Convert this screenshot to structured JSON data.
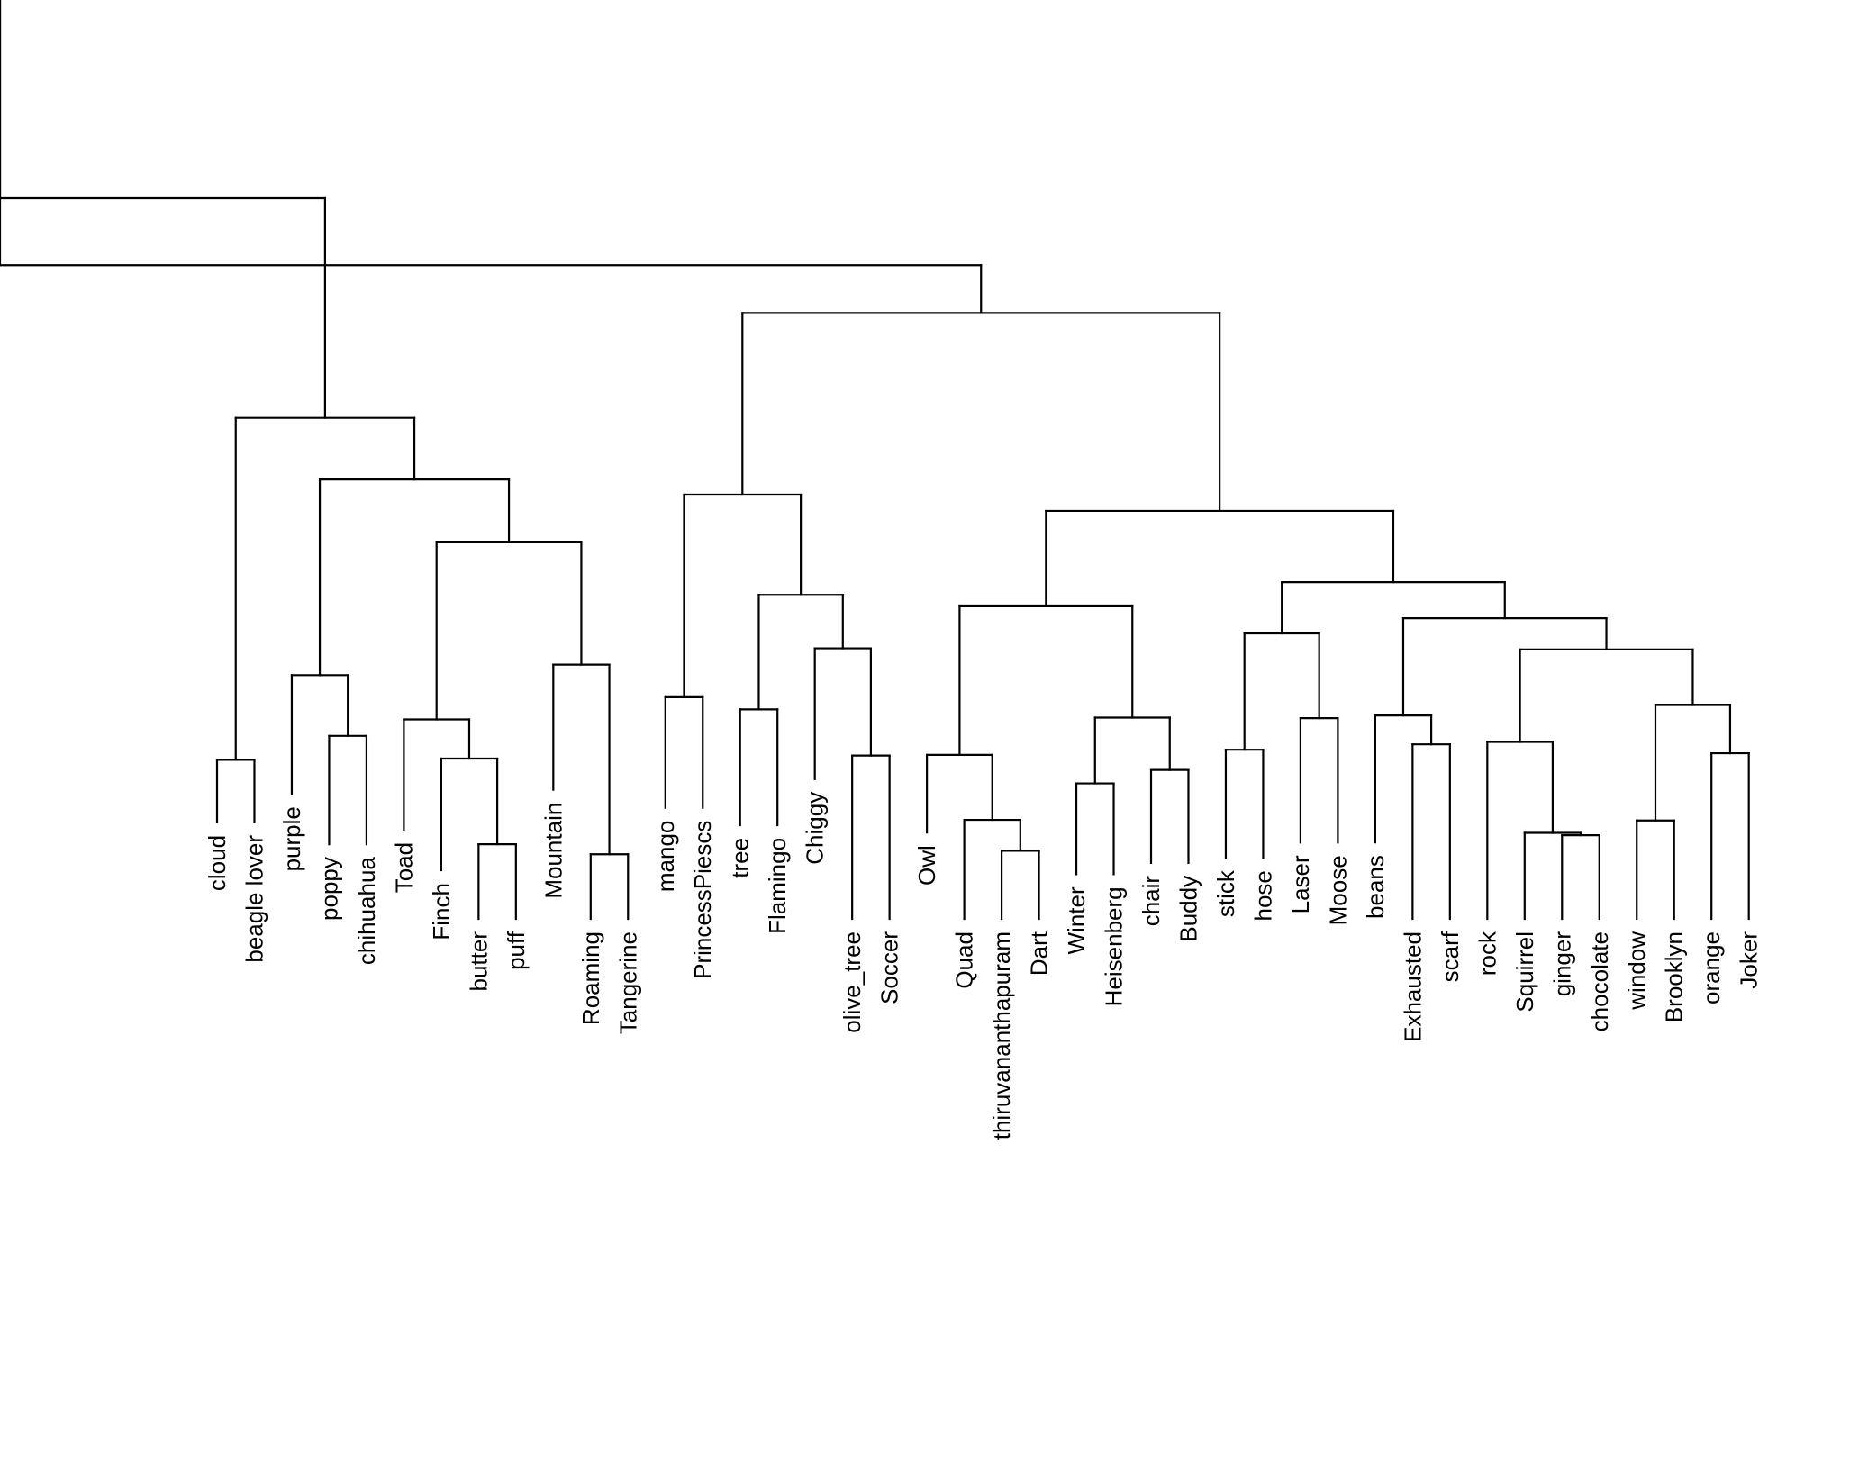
{
  "diagram": {
    "type": "dendrogram",
    "leaves": [
      "cloud",
      "beagle lover",
      "purple",
      "poppy",
      "chihuahua",
      "Toad",
      "Finch",
      "butter",
      "puff",
      "Mountain",
      "Roaming",
      "Tangerine",
      "mango",
      "PrincessPiescs",
      "tree",
      "Flamingo",
      "Chiggy",
      "olive_tree",
      "Soccer",
      "Owl",
      "Quad",
      "thiruvananthapuram",
      "Dart",
      "Winter",
      "Heisenberg",
      "chair",
      "Buddy",
      "stick",
      "hose",
      "Laser",
      "Moose",
      "beans",
      "Exhausted",
      "scarf",
      "rock",
      "Squirrel",
      "ginger",
      "chocolate",
      "window",
      "Brooklyn",
      "orange",
      "Joker"
    ],
    "leaf_heights": [
      0.0962,
      0.0962,
      0.1248,
      0.0745,
      0.0745,
      0.0891,
      0.0485,
      0.0,
      0.0,
      0.1288,
      0.0,
      0.0,
      0.1109,
      0.1109,
      0.0935,
      0.0935,
      0.1395,
      0.0,
      0.0,
      0.0861,
      0.0,
      0.0,
      0.0,
      0.0446,
      0.0446,
      0.0558,
      0.0558,
      0.061,
      0.061,
      0.0761,
      0.0761,
      0.0763,
      0.0,
      0.0,
      0.0,
      0.0,
      0.0,
      0.0,
      0.0,
      0.0,
      0.0,
      0.0
    ],
    "merges": [
      {
        "a": -1,
        "b": -2,
        "h": 0.1587
      },
      {
        "a": -4,
        "b": -5,
        "h": 0.1826
      },
      {
        "a": -3,
        "b": 2,
        "h": 0.2433
      },
      {
        "a": -8,
        "b": -9,
        "h": 0.0745
      },
      {
        "a": -7,
        "b": 4,
        "h": 0.16
      },
      {
        "a": -6,
        "b": 5,
        "h": 0.1991
      },
      {
        "a": -11,
        "b": -12,
        "h": 0.0645
      },
      {
        "a": -10,
        "b": 7,
        "h": 0.2538
      },
      {
        "a": 6,
        "b": 8,
        "h": 0.3758
      },
      {
        "a": 3,
        "b": 9,
        "h": 0.4385
      },
      {
        "a": 1,
        "b": 10,
        "h": 0.5
      },
      {
        "a": -13,
        "b": -14,
        "h": 0.2212
      },
      {
        "a": -15,
        "b": -16,
        "h": 0.2091
      },
      {
        "a": -18,
        "b": -19,
        "h": 0.163
      },
      {
        "a": -17,
        "b": 14,
        "h": 0.27
      },
      {
        "a": 13,
        "b": 15,
        "h": 0.3233
      },
      {
        "a": 12,
        "b": 16,
        "h": 0.4233
      },
      {
        "a": -22,
        "b": -23,
        "h": 0.0679
      },
      {
        "a": -21,
        "b": 18,
        "h": 0.0988
      },
      {
        "a": -20,
        "b": 19,
        "h": 0.1637
      },
      {
        "a": -24,
        "b": -25,
        "h": 0.1352
      },
      {
        "a": -26,
        "b": -27,
        "h": 0.1486
      },
      {
        "a": 21,
        "b": 22,
        "h": 0.2009
      },
      {
        "a": 20,
        "b": 23,
        "h": 0.3119
      },
      {
        "a": -28,
        "b": -29,
        "h": 0.1688
      },
      {
        "a": -30,
        "b": -31,
        "h": 0.2003
      },
      {
        "a": 25,
        "b": 26,
        "h": 0.2849
      },
      {
        "a": -34,
        "b": -33,
        "h": 0.1742
      },
      {
        "a": -32,
        "b": 28,
        "h": 0.203
      },
      {
        "a": -38,
        "b": -37,
        "h": 0.0835
      },
      {
        "a": -36,
        "b": 30,
        "h": 0.0858
      },
      {
        "a": -35,
        "b": 31,
        "h": 0.1766
      },
      {
        "a": -39,
        "b": -40,
        "h": 0.0982
      },
      {
        "a": -42,
        "b": -41,
        "h": 0.1653
      },
      {
        "a": 33,
        "b": 34,
        "h": 0.2134
      },
      {
        "a": 32,
        "b": 35,
        "h": 0.2689
      },
      {
        "a": 29,
        "b": 36,
        "h": 0.3001
      },
      {
        "a": 27,
        "b": 37,
        "h": 0.336
      },
      {
        "a": 24,
        "b": 38,
        "h": 0.4072
      },
      {
        "a": 17,
        "b": 39,
        "h": 0.6045
      },
      {
        "a": 40,
        "b": 41,
        "h": 0.6523
      },
      {
        "a": 11,
        "b": 42,
        "h": 0.719
      }
    ]
  }
}
